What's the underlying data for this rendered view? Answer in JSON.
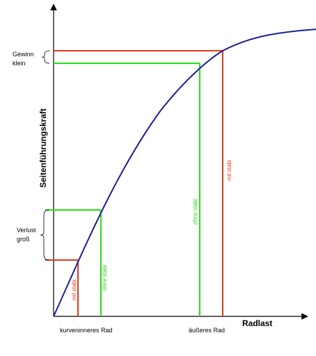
{
  "diagram": {
    "y_axis_label": "Seitenführungskraft",
    "x_axis_label": "Radlast",
    "x_tick_inner": "kurveninneres Rad",
    "x_tick_outer": "äußeres Rad",
    "brace_top_line1": "Gewinn",
    "brace_top_line2": "klein",
    "brace_bottom_line1": "Verlust",
    "brace_bottom_line2": "groß",
    "label_with_bar_inner": "mit stabi",
    "label_without_bar_inner": "ohne stabi",
    "label_without_bar_outer": "ohne stabi",
    "label_with_bar_outer": "mit stabi"
  },
  "colors": {
    "curve": "#1a1f9a",
    "with_bar": "#e0391a",
    "without_bar": "#22e010",
    "axis": "#000000"
  }
}
